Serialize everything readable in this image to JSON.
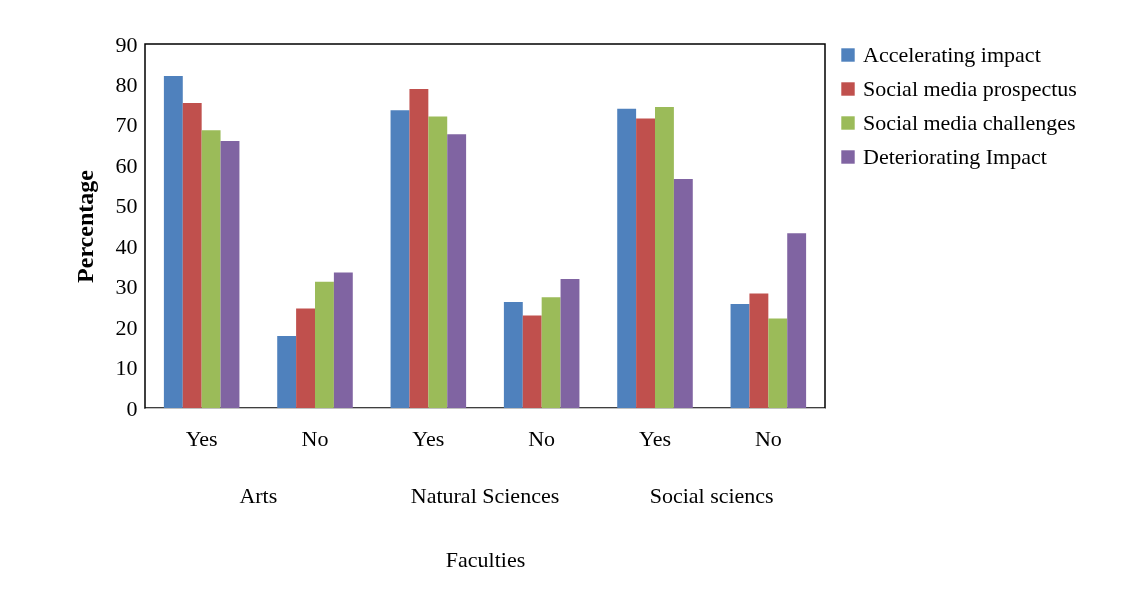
{
  "chart_data": {
    "type": "bar",
    "xlabel": "Faculties",
    "ylabel": "Percentage",
    "categories": [
      "Yes",
      "No",
      "Yes",
      "No",
      "Yes",
      "No"
    ],
    "series": [
      {
        "name": "Accelerating impact",
        "color": "#4f81bd",
        "values": [
          82.1,
          17.8,
          73.6,
          26.2,
          74.0,
          25.7
        ]
      },
      {
        "name": "Social media prospectus",
        "color": "#c0504d",
        "values": [
          75.4,
          24.6,
          78.9,
          22.9,
          71.6,
          28.3
        ]
      },
      {
        "name": "Social media challenges",
        "color": "#9bbb59",
        "values": [
          68.7,
          31.2,
          72.1,
          27.4,
          74.4,
          22.1
        ]
      },
      {
        "name": "Deteriorating Impact",
        "color": "#8064a2",
        "values": [
          66.0,
          33.5,
          67.7,
          31.9,
          56.6,
          43.2
        ]
      }
    ],
    "annotations": [
      "Arts",
      "Natural Sciences",
      "Social sciencs"
    ],
    "ylim": [
      0,
      90
    ],
    "yticks": [
      0,
      10,
      20,
      30,
      40,
      50,
      60,
      70,
      80,
      90
    ],
    "grid": false,
    "legend": "right"
  }
}
